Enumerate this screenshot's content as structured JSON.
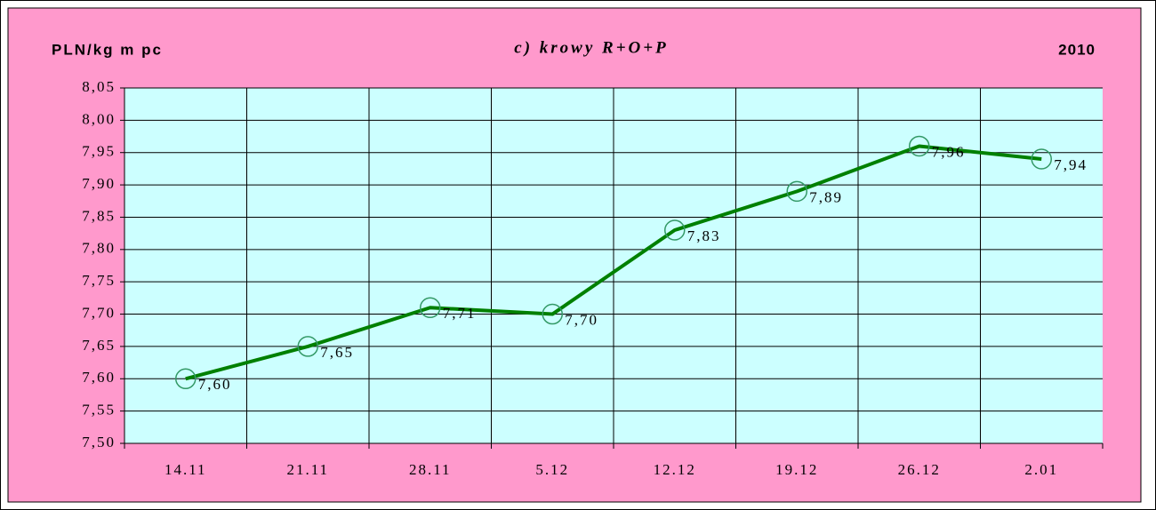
{
  "chart_data": {
    "type": "line",
    "title": "c) krowy R+O+P",
    "y_label": "PLN/kg m pc",
    "year_label": "2010",
    "categories": [
      "14.11",
      "21.11",
      "28.11",
      "5.12",
      "12.12",
      "19.12",
      "26.12",
      "2.01"
    ],
    "series": [
      {
        "color": "#008000",
        "marker_color": "#339966",
        "values": [
          7.6,
          7.65,
          7.71,
          7.7,
          7.83,
          7.89,
          7.96,
          7.94
        ],
        "value_labels": [
          "7,60",
          "7,65",
          "7,71",
          "7,70",
          "7,83",
          "7,89",
          "7,96",
          "7,94"
        ]
      }
    ],
    "ylim": [
      7.5,
      8.05
    ],
    "yticks": [
      {
        "value": 7.5,
        "label": "7,50"
      },
      {
        "value": 7.55,
        "label": "7,55"
      },
      {
        "value": 7.6,
        "label": "7,60"
      },
      {
        "value": 7.65,
        "label": "7,65"
      },
      {
        "value": 7.7,
        "label": "7,70"
      },
      {
        "value": 7.75,
        "label": "7,75"
      },
      {
        "value": 7.8,
        "label": "7,80"
      },
      {
        "value": 7.85,
        "label": "7,85"
      },
      {
        "value": 7.9,
        "label": "7,90"
      },
      {
        "value": 7.95,
        "label": "7,95"
      },
      {
        "value": 8.0,
        "label": "8,00"
      },
      {
        "value": 8.05,
        "label": "8,05"
      }
    ],
    "grid": true
  }
}
